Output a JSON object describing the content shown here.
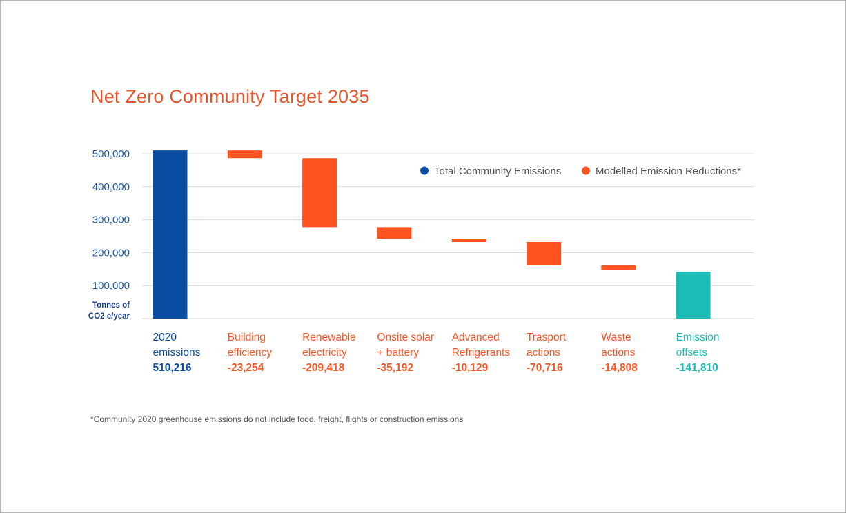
{
  "title": "Net Zero Community Target 2035",
  "footnote": "*Community 2020 greenhouse emissions do not include food, freight, flights or construction emissions",
  "colors": {
    "total": "#0a4ea3",
    "reduction": "#ff5422",
    "offset": "#1cbdb7",
    "title": "#e8552a",
    "grid": "#d9d9d9"
  },
  "chart_data": {
    "type": "bar",
    "subtype": "waterfall",
    "title": "Net Zero Community Target 2035",
    "ylabel": [
      "Tonnes of",
      "CO2 e/year"
    ],
    "ylim": [
      0,
      510216
    ],
    "yticks": [
      100000,
      200000,
      300000,
      400000,
      500000
    ],
    "ytick_labels": [
      "100,000",
      "200,000",
      "300,000",
      "400,000",
      "500,000"
    ],
    "grid": true,
    "legend": {
      "placement": "top-right",
      "entries": [
        {
          "label": "Total Community Emissions",
          "color": "#0a4ea3"
        },
        {
          "label": "Modelled Emission Reductions*",
          "color": "#ff5422"
        }
      ]
    },
    "categories": [
      {
        "label": [
          "2020",
          "emissions"
        ],
        "value": 510216,
        "value_label": "510,216",
        "kind": "total"
      },
      {
        "label": [
          "Building",
          "efficiency"
        ],
        "value": -23254,
        "value_label": "-23,254",
        "kind": "reduction"
      },
      {
        "label": [
          "Renewable",
          "electricity"
        ],
        "value": -209418,
        "value_label": "-209,418",
        "kind": "reduction"
      },
      {
        "label": [
          "Onsite solar",
          "+ battery"
        ],
        "value": -35192,
        "value_label": "-35,192",
        "kind": "reduction"
      },
      {
        "label": [
          "Advanced",
          "Refrigerants"
        ],
        "value": -10129,
        "value_label": "-10,129",
        "kind": "reduction"
      },
      {
        "label": [
          "Trasport",
          "actions"
        ],
        "value": -70716,
        "value_label": "-70,716",
        "kind": "reduction"
      },
      {
        "label": [
          "Waste",
          "actions"
        ],
        "value": -14808,
        "value_label": "-14,808",
        "kind": "reduction"
      },
      {
        "label": [
          "Emission",
          "offsets"
        ],
        "value": -141810,
        "value_label": "-141,810",
        "kind": "offset"
      }
    ]
  }
}
